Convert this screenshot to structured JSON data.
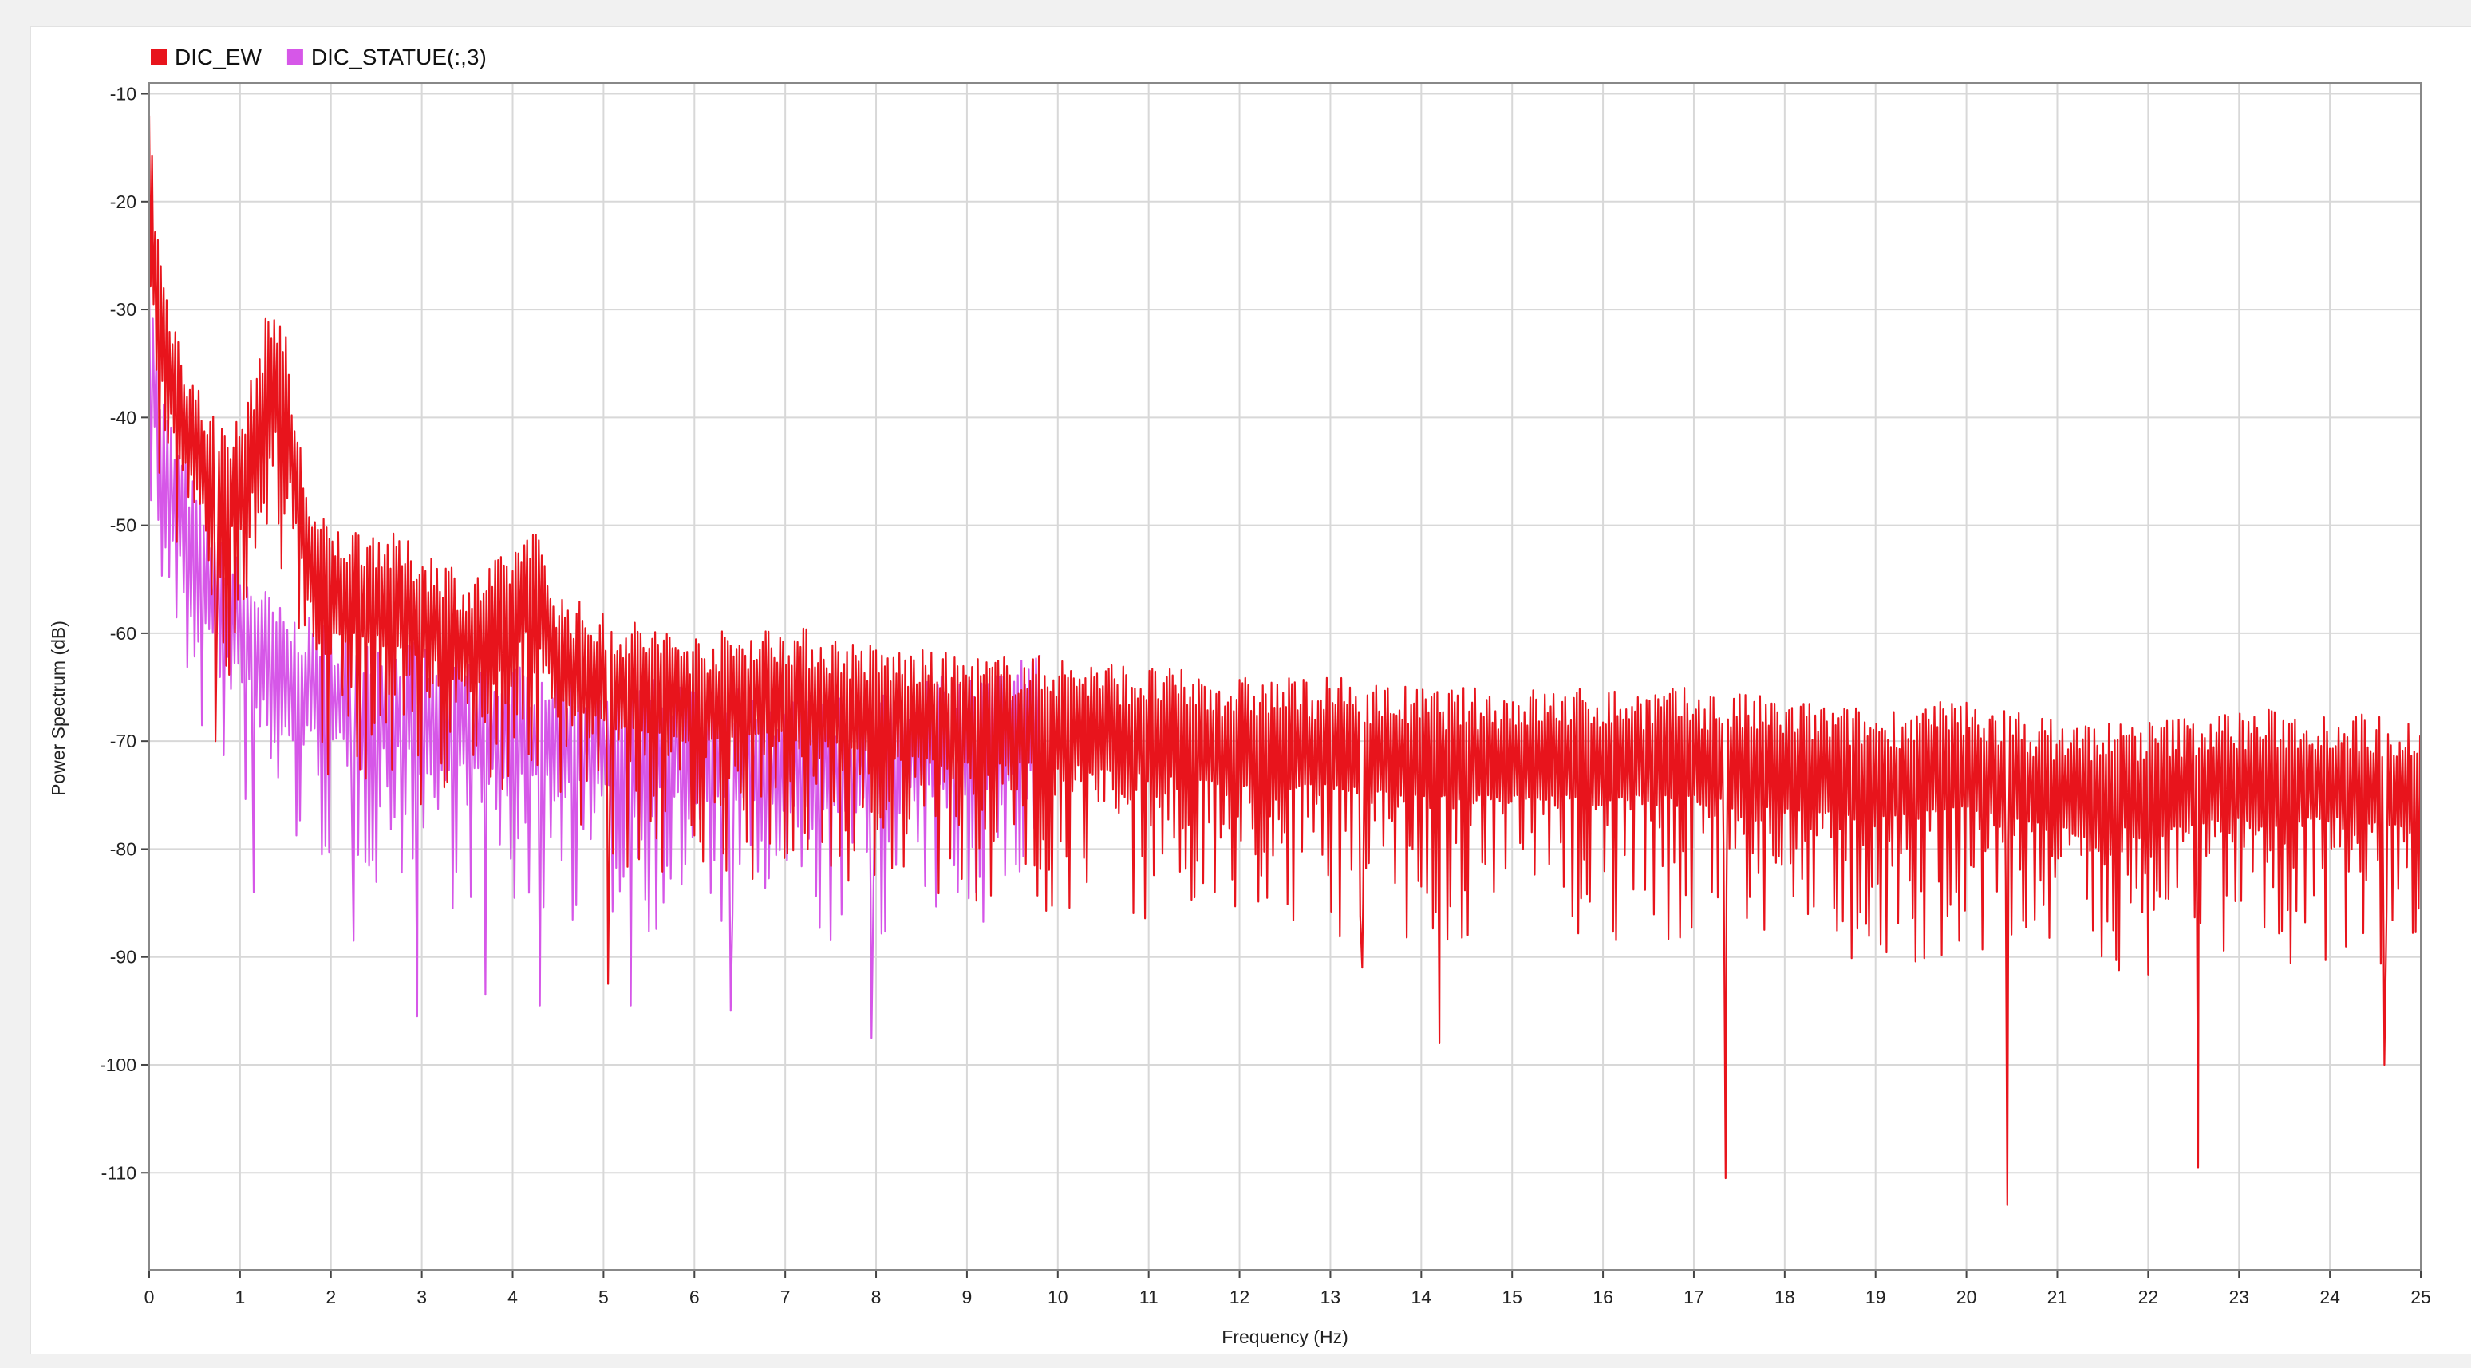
{
  "chart_data": {
    "type": "line",
    "title": "",
    "xlabel": "Frequency (Hz)",
    "ylabel": "Power Spectrum (dB)",
    "xlim": [
      0,
      25
    ],
    "ylim": [
      -119,
      -9
    ],
    "x_ticks": [
      0,
      1,
      2,
      3,
      4,
      5,
      6,
      7,
      8,
      9,
      10,
      11,
      12,
      13,
      14,
      15,
      16,
      17,
      18,
      19,
      20,
      21,
      22,
      23,
      24,
      25
    ],
    "y_ticks": [
      -10,
      -20,
      -30,
      -40,
      -50,
      -60,
      -70,
      -80,
      -90,
      -100,
      -110
    ],
    "grid": true,
    "legend_position": "top-left",
    "series": [
      {
        "name": "DIC_EW",
        "color": "#e8141c",
        "x": [
          0,
          0.02,
          0.05,
          0.1,
          0.15,
          0.2,
          0.3,
          0.4,
          0.5,
          0.6,
          0.7,
          0.8,
          0.9,
          1.0,
          1.1,
          1.2,
          1.3,
          1.4,
          1.5,
          1.6,
          1.7,
          1.8,
          2.0,
          2.5,
          3.0,
          3.3,
          3.5,
          4.0,
          4.2,
          4.5,
          5.0,
          6.0,
          7.0,
          8.0,
          9.0,
          10,
          11,
          12,
          13,
          14,
          15,
          16,
          17,
          18,
          19,
          20,
          21,
          22,
          23,
          24,
          25
        ],
        "y": [
          -15,
          -18,
          -25,
          -28,
          -32,
          -34,
          -37,
          -40,
          -42,
          -44,
          -45,
          -46,
          -46,
          -46,
          -43,
          -40,
          -36,
          -35,
          -38,
          -45,
          -50,
          -54,
          -56,
          -56,
          -58,
          -59,
          -61,
          -58,
          -55,
          -62,
          -64,
          -66,
          -65,
          -67,
          -68,
          -68,
          -69,
          -70,
          -70,
          -71,
          -71,
          -71,
          -71,
          -72,
          -73,
          -72,
          -74,
          -74,
          -73,
          -73,
          -74
        ],
        "troughs": [
          [
            0.73,
            -70
          ],
          [
            5.05,
            -92.5
          ],
          [
            13.35,
            -91
          ],
          [
            14.2,
            -98
          ],
          [
            17.35,
            -110.5
          ],
          [
            20.45,
            -113
          ],
          [
            22.55,
            -109.5
          ],
          [
            24.6,
            -100
          ]
        ]
      },
      {
        "name": "DIC_STATUE(:,3)",
        "color": "#d657e8",
        "x": [
          0,
          0.05,
          0.1,
          0.2,
          0.3,
          0.5,
          0.7,
          0.9,
          1.1,
          1.3,
          1.5,
          2.0,
          2.5,
          3.0,
          3.5,
          4.0,
          4.5,
          5.0,
          5.5,
          6.0,
          6.5,
          7.0,
          7.5,
          8.0,
          8.5,
          9.0,
          9.5,
          9.8
        ],
        "y": [
          -30,
          -35,
          -42,
          -45,
          -48,
          -52,
          -55,
          -58,
          -60,
          -62,
          -64,
          -65,
          -66,
          -67,
          -68,
          -69,
          -69,
          -70,
          -70,
          -71,
          -71,
          -72,
          -72,
          -71,
          -70,
          -70,
          -69,
          -66
        ],
        "troughs": [
          [
            1.15,
            -84
          ],
          [
            2.25,
            -88.5
          ],
          [
            2.95,
            -95.5
          ],
          [
            3.7,
            -93.5
          ],
          [
            4.3,
            -94.5
          ],
          [
            5.3,
            -94.5
          ],
          [
            6.4,
            -95
          ],
          [
            7.95,
            -97.5
          ]
        ]
      }
    ]
  }
}
